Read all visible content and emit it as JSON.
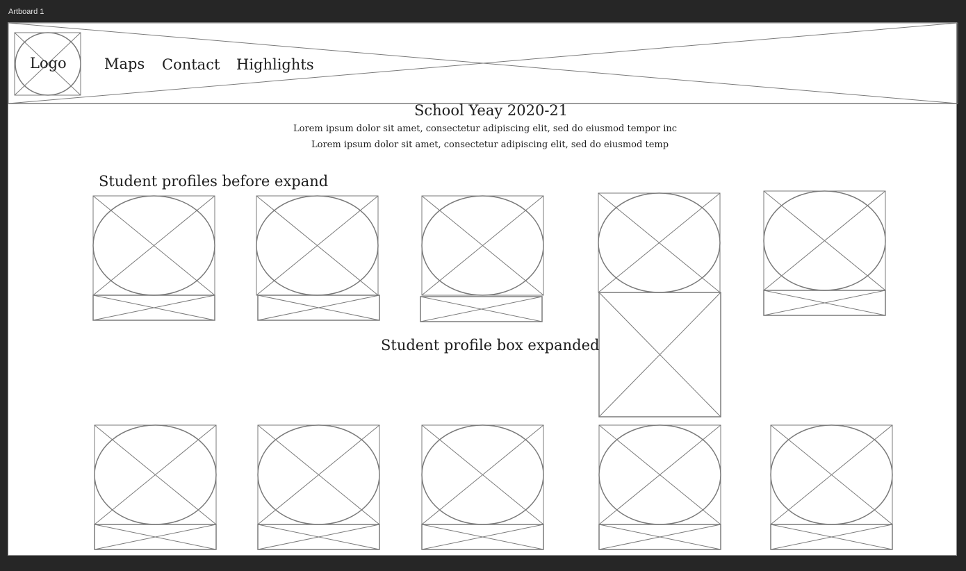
{
  "artboard": {
    "label": "Artboard 1"
  },
  "header": {
    "logo_label": "Logo",
    "nav": [
      {
        "label": "Maps"
      },
      {
        "label": "Contact"
      },
      {
        "label": "Highlights"
      }
    ]
  },
  "main": {
    "title": "School Yeay 2020-21",
    "lorem_line_1": "Lorem ipsum dolor sit amet, consectetur adipiscing elit, sed do eiusmod tempor inc",
    "lorem_line_2": "Lorem ipsum dolor sit amet, consectetur adipiscing elit, sed do eiusmod temp",
    "annotation_before": "Student profiles before expand",
    "annotation_expanded": "Student profile box expanded"
  },
  "colors": {
    "canvas_bg": "#262626",
    "artboard_bg": "#ffffff",
    "wire_stroke": "#7a7a7a",
    "text": "#1e1e1e"
  }
}
